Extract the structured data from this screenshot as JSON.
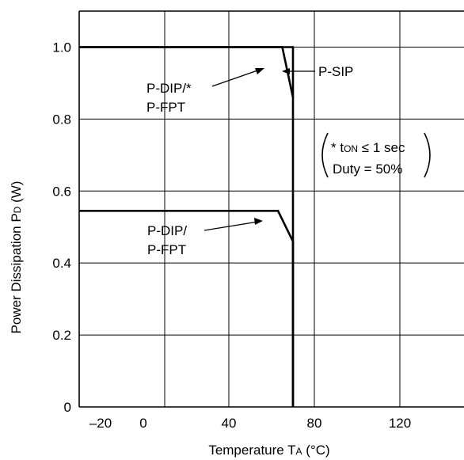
{
  "chart_data": {
    "type": "line",
    "xlabel": {
      "main": "Temperature T",
      "sub": "A",
      "unit": " (°C)"
    },
    "ylabel": {
      "main": "Power Dissipation P",
      "sub": "D",
      "unit": " (W)"
    },
    "xlim": [
      -30,
      150
    ],
    "ylim": [
      0,
      1.1
    ],
    "grid": true,
    "x_ticks": [
      {
        "value": -20,
        "label": "–20"
      },
      {
        "value": 0,
        "label": "0"
      },
      {
        "value": 40,
        "label": "40"
      },
      {
        "value": 80,
        "label": "80"
      },
      {
        "value": 120,
        "label": "120"
      }
    ],
    "x_grid": [
      10,
      40,
      80,
      120
    ],
    "y_ticks": [
      {
        "value": 0,
        "label": "0"
      },
      {
        "value": 0.2,
        "label": "0.2"
      },
      {
        "value": 0.4,
        "label": "0.4"
      },
      {
        "value": 0.6,
        "label": "0.6"
      },
      {
        "value": 0.8,
        "label": "0.8"
      },
      {
        "value": 1.0,
        "label": "1.0"
      }
    ],
    "series": [
      {
        "name": "P-SIP",
        "points": [
          [
            -30,
            1.0
          ],
          [
            70,
            1.0
          ],
          [
            70,
            0
          ]
        ]
      },
      {
        "name": "P-DIP/* P-FPT",
        "points": [
          [
            -30,
            1.0
          ],
          [
            65,
            1.0
          ],
          [
            70,
            0.86
          ]
        ]
      },
      {
        "name": "P-DIP/ P-FPT",
        "points": [
          [
            -30,
            0.545
          ],
          [
            63,
            0.545
          ],
          [
            70,
            0.46
          ],
          [
            70,
            0
          ]
        ]
      }
    ],
    "annotations": {
      "psip": "P-SIP",
      "dip_star_line1": "P-DIP/*",
      "dip_star_line2": "P-FPT",
      "dip_line1": "P-DIP/",
      "dip_line2": "P-FPT",
      "note_line1_prefix": "* t",
      "note_line1_sub": "ON",
      "note_line1_suffix": " ≤ 1 sec",
      "note_line2": "Duty = 50%"
    }
  }
}
